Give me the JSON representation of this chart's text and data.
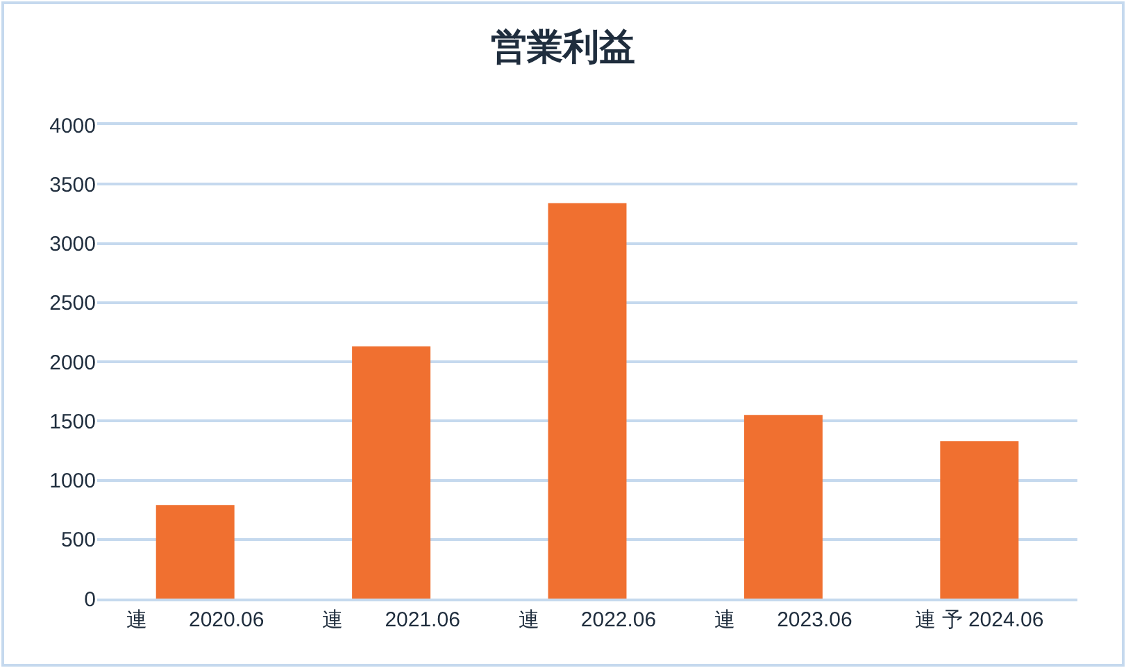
{
  "chart_data": {
    "type": "bar",
    "title": "営業利益",
    "categories": [
      "連　　2020.06",
      "連　　2021.06",
      "連　　2022.06",
      "連　　2023.06",
      "連 予 2024.06"
    ],
    "values": [
      790,
      2130,
      3340,
      1550,
      1330
    ],
    "color": "#f07030",
    "ylim": [
      0,
      4000
    ],
    "yticks": [
      0,
      500,
      1000,
      1500,
      2000,
      2500,
      3000,
      3500,
      4000
    ],
    "grid": "y"
  }
}
